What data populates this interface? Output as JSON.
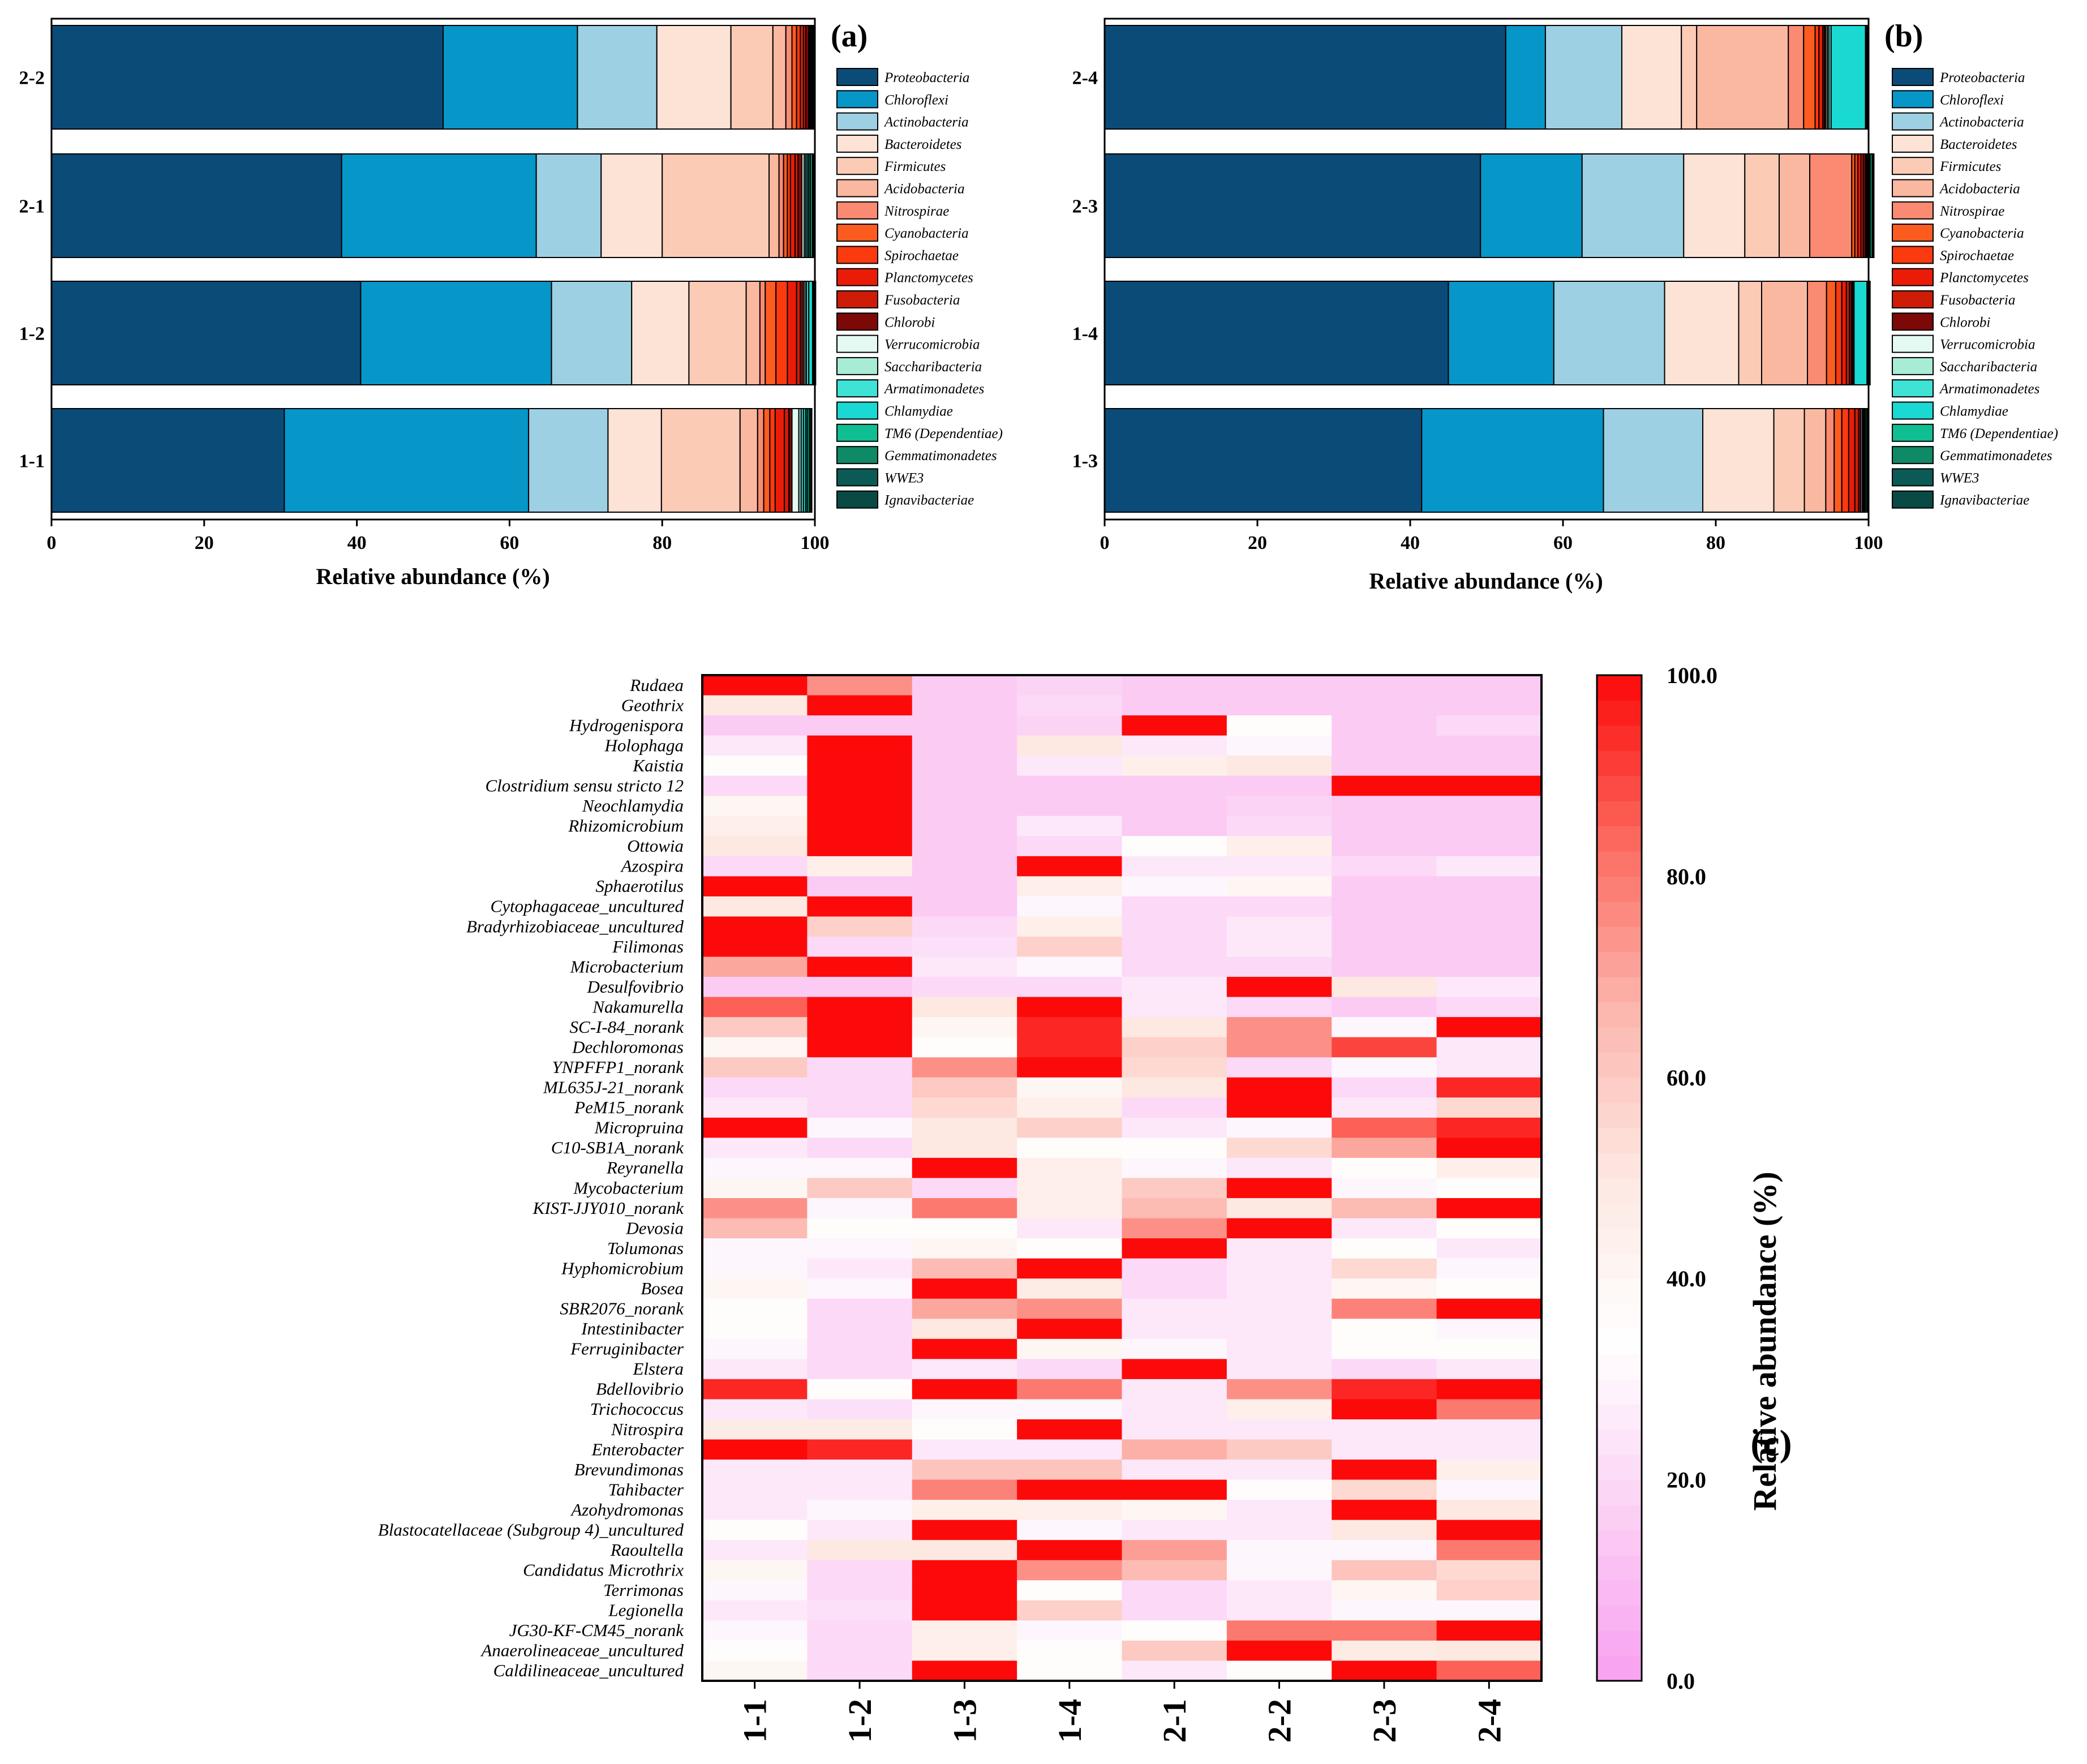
{
  "colors": {
    "phyla": [
      "#0b4b78",
      "#0696c8",
      "#9ed0e4",
      "#fde3d6",
      "#fccbb6",
      "#fbb8a0",
      "#fa8a72",
      "#fd5c20",
      "#fb3a10",
      "#ea1c08",
      "#ce1c06",
      "#7c0808",
      "#e3f9f1",
      "#a8ecd5",
      "#3fe3d6",
      "#1ad9d2",
      "#0fbf92",
      "#0e8a66",
      "#0b5a55",
      "#0a4a44"
    ],
    "heat_stops": [
      "#f8a0f0",
      "#fbd0f4",
      "#ffffff",
      "#fde8e2",
      "#fcb6ae",
      "#fc6a60",
      "#fc0a0a"
    ]
  },
  "chart_data": [
    {
      "id": "a",
      "type": "bar",
      "orientation": "horizontal",
      "stacked": true,
      "panel_label": "(a)",
      "xlabel": "Relative abundance (%)",
      "xlim": [
        0,
        100
      ],
      "xticks": [
        "0",
        "20",
        "40",
        "60",
        "80",
        "100"
      ],
      "categories": [
        "2-2",
        "2-1",
        "1-2",
        "1-1"
      ],
      "legend_position": "right",
      "series": [
        {
          "name": "Proteobacteria",
          "values": [
            51.3,
            38.0,
            40.5,
            30.5
          ]
        },
        {
          "name": "Chloroflexi",
          "values": [
            17.6,
            25.5,
            25.0,
            32.0
          ]
        },
        {
          "name": "Actinobacteria",
          "values": [
            10.4,
            8.5,
            10.5,
            10.4
          ]
        },
        {
          "name": "Bacteroidetes",
          "values": [
            9.7,
            8.0,
            7.5,
            7.0
          ]
        },
        {
          "name": "Firmicutes",
          "values": [
            5.5,
            14.0,
            7.5,
            10.3
          ]
        },
        {
          "name": "Acidobacteria",
          "values": [
            1.7,
            1.3,
            1.8,
            2.3
          ]
        },
        {
          "name": "Nitrospirae",
          "values": [
            0.8,
            0.6,
            0.7,
            0.8
          ]
        },
        {
          "name": "Cyanobacteria",
          "values": [
            0.6,
            0.5,
            1.4,
            0.8
          ]
        },
        {
          "name": "Spirochaetae",
          "values": [
            0.5,
            0.4,
            1.5,
            0.7
          ]
        },
        {
          "name": "Planctomycetes",
          "values": [
            0.4,
            0.6,
            1.2,
            1.2
          ]
        },
        {
          "name": "Fusobacteria",
          "values": [
            0.3,
            0.4,
            0.5,
            0.6
          ]
        },
        {
          "name": "Chlorobi",
          "values": [
            0.4,
            0.5,
            0.4,
            0.4
          ]
        },
        {
          "name": "Verrucomicrobia",
          "values": [
            0.1,
            0.3,
            0.2,
            0.9
          ]
        },
        {
          "name": "Saccharibacteria",
          "values": [
            0.1,
            0.2,
            0.2,
            0.3
          ]
        },
        {
          "name": "Armatimonadetes",
          "values": [
            0.1,
            0.2,
            0.3,
            0.3
          ]
        },
        {
          "name": "Chlamydiae",
          "values": [
            0.1,
            0.2,
            0.5,
            0.3
          ]
        },
        {
          "name": "TM6 (Dependentiae)",
          "values": [
            0.1,
            0.2,
            0.1,
            0.2
          ]
        },
        {
          "name": "Gemmatimonadetes",
          "values": [
            0.1,
            0.3,
            0.1,
            0.3
          ]
        },
        {
          "name": "WWE3",
          "values": [
            0.1,
            0.1,
            0.1,
            0.2
          ]
        },
        {
          "name": "Ignavibacteriae",
          "values": [
            0.1,
            0.1,
            0.1,
            0.1
          ]
        }
      ]
    },
    {
      "id": "b",
      "type": "bar",
      "orientation": "horizontal",
      "stacked": true,
      "panel_label": "(b)",
      "xlabel": "Relative abundance (%)",
      "xlim": [
        0,
        100
      ],
      "xticks": [
        "0",
        "20",
        "40",
        "60",
        "80",
        "100"
      ],
      "categories": [
        "2-4",
        "2-3",
        "1-4",
        "1-3"
      ],
      "legend_position": "right",
      "series": [
        {
          "name": "Proteobacteria",
          "values": [
            52.5,
            49.2,
            45.0,
            41.5
          ]
        },
        {
          "name": "Chloroflexi",
          "values": [
            5.2,
            13.3,
            13.8,
            23.8
          ]
        },
        {
          "name": "Actinobacteria",
          "values": [
            10.0,
            13.3,
            14.5,
            13.0
          ]
        },
        {
          "name": "Bacteroidetes",
          "values": [
            7.8,
            8.0,
            9.7,
            9.3
          ]
        },
        {
          "name": "Firmicutes",
          "values": [
            2.0,
            4.5,
            3.0,
            4.0
          ]
        },
        {
          "name": "Acidobacteria",
          "values": [
            12.0,
            4.0,
            6.0,
            2.8
          ]
        },
        {
          "name": "Nitrospirae",
          "values": [
            2.0,
            5.5,
            2.5,
            1.1
          ]
        },
        {
          "name": "Cyanobacteria",
          "values": [
            1.5,
            0.4,
            1.2,
            1.0
          ]
        },
        {
          "name": "Spirochaetae",
          "values": [
            0.5,
            0.4,
            0.8,
            0.9
          ]
        },
        {
          "name": "Planctomycetes",
          "values": [
            0.5,
            0.4,
            0.6,
            0.8
          ]
        },
        {
          "name": "Fusobacteria",
          "values": [
            0.2,
            0.3,
            0.4,
            0.5
          ]
        },
        {
          "name": "Chlorobi",
          "values": [
            0.2,
            0.3,
            0.3,
            0.3
          ]
        },
        {
          "name": "Verrucomicrobia",
          "values": [
            0.2,
            0.1,
            0.1,
            0.2
          ]
        },
        {
          "name": "Saccharibacteria",
          "values": [
            0.2,
            0.1,
            0.1,
            0.1
          ]
        },
        {
          "name": "Armatimonadetes",
          "values": [
            0.3,
            0.1,
            0.1,
            0.1
          ]
        },
        {
          "name": "Chlamydiae",
          "values": [
            4.5,
            0.2,
            1.7,
            0.1
          ]
        },
        {
          "name": "TM6 (Dependentiae)",
          "values": [
            0.1,
            0.1,
            0.1,
            0.1
          ]
        },
        {
          "name": "Gemmatimonadetes",
          "values": [
            0.1,
            0.3,
            0.1,
            0.2
          ]
        },
        {
          "name": "WWE3",
          "values": [
            0.1,
            0.1,
            0.1,
            0.1
          ]
        },
        {
          "name": "Ignavibacteriae",
          "values": [
            0.1,
            0.1,
            0.1,
            0.1
          ]
        }
      ]
    },
    {
      "id": "c",
      "type": "heatmap",
      "panel_label": "(c)",
      "colorbar_title": "Relative abundance (%)",
      "colorbar_range": [
        0,
        100
      ],
      "colorbar_ticks": [
        "0.0",
        "20.0",
        "40.0",
        "60.0",
        "80.0",
        "100.0"
      ],
      "columns": [
        "1-1",
        "1-2",
        "1-3",
        "1-4",
        "2-1",
        "2-2",
        "2-3",
        "2-4"
      ],
      "rows": [
        {
          "genus": "Rudaea",
          "values": [
            100,
            75,
            15,
            18,
            15,
            15,
            15,
            15
          ]
        },
        {
          "genus": "Geothrix",
          "values": [
            50,
            100,
            15,
            20,
            15,
            15,
            15,
            15
          ]
        },
        {
          "genus": "Hydrogenispora",
          "values": [
            15,
            15,
            15,
            18,
            100,
            35,
            15,
            20
          ]
        },
        {
          "genus": "Holophaga",
          "values": [
            25,
            100,
            15,
            50,
            25,
            30,
            15,
            15
          ]
        },
        {
          "genus": "Kaistia",
          "values": [
            35,
            100,
            15,
            25,
            45,
            50,
            15,
            15
          ]
        },
        {
          "genus": "Clostridium sensu stricto 12",
          "values": [
            20,
            100,
            15,
            15,
            15,
            15,
            100,
            100
          ]
        },
        {
          "genus": "Neochlamydia",
          "values": [
            40,
            100,
            15,
            15,
            15,
            18,
            15,
            15
          ]
        },
        {
          "genus": "Rhizomicrobium",
          "values": [
            45,
            100,
            15,
            25,
            15,
            20,
            15,
            15
          ]
        },
        {
          "genus": "Ottowia",
          "values": [
            50,
            100,
            15,
            20,
            35,
            45,
            15,
            15
          ]
        },
        {
          "genus": "Azospira",
          "values": [
            20,
            45,
            15,
            100,
            25,
            25,
            20,
            25
          ]
        },
        {
          "genus": "Sphaerotilus",
          "values": [
            100,
            15,
            15,
            45,
            30,
            40,
            15,
            15
          ]
        },
        {
          "genus": "Cytophagaceae_uncultured",
          "values": [
            50,
            100,
            15,
            30,
            20,
            20,
            15,
            15
          ]
        },
        {
          "genus": "Bradyrhizobiaceae_uncultured",
          "values": [
            100,
            58,
            20,
            45,
            20,
            25,
            15,
            15
          ]
        },
        {
          "genus": "Filimonas",
          "values": [
            100,
            20,
            22,
            58,
            20,
            25,
            15,
            15
          ]
        },
        {
          "genus": "Microbacterium",
          "values": [
            70,
            100,
            25,
            30,
            20,
            20,
            15,
            15
          ]
        },
        {
          "genus": "Desulfovibrio",
          "values": [
            15,
            15,
            20,
            20,
            25,
            100,
            50,
            25
          ]
        },
        {
          "genus": "Nakamurella",
          "values": [
            85,
            100,
            50,
            100,
            25,
            20,
            15,
            20
          ]
        },
        {
          "genus": "SC-I-84_norank",
          "values": [
            60,
            100,
            40,
            95,
            50,
            75,
            30,
            100
          ]
        },
        {
          "genus": "Dechloromonas",
          "values": [
            40,
            100,
            35,
            95,
            58,
            75,
            90,
            25
          ]
        },
        {
          "genus": "YNPFFP1_norank",
          "values": [
            60,
            20,
            75,
            100,
            55,
            20,
            30,
            25
          ]
        },
        {
          "genus": "ML635J-21_norank",
          "values": [
            20,
            20,
            60,
            40,
            50,
            100,
            20,
            95
          ]
        },
        {
          "genus": "PeM15_norank",
          "values": [
            25,
            20,
            55,
            45,
            20,
            100,
            25,
            55
          ]
        },
        {
          "genus": "Micropruina",
          "values": [
            100,
            30,
            50,
            58,
            25,
            30,
            85,
            95
          ]
        },
        {
          "genus": "C10-SB1A_norank",
          "values": [
            25,
            20,
            50,
            35,
            35,
            55,
            70,
            100
          ]
        },
        {
          "genus": "Reyranella",
          "values": [
            30,
            30,
            100,
            45,
            30,
            25,
            35,
            45
          ]
        },
        {
          "genus": "Mycobacterium",
          "values": [
            40,
            60,
            20,
            45,
            60,
            100,
            30,
            35
          ]
        },
        {
          "genus": "KIST-JJY010_norank",
          "values": [
            75,
            30,
            80,
            45,
            65,
            50,
            65,
            100
          ]
        },
        {
          "genus": "Devosia",
          "values": [
            65,
            35,
            35,
            25,
            75,
            100,
            25,
            35
          ]
        },
        {
          "genus": "Tolumonas",
          "values": [
            30,
            30,
            40,
            35,
            100,
            25,
            35,
            25
          ]
        },
        {
          "genus": "Hyphomicrobium",
          "values": [
            30,
            25,
            65,
            100,
            20,
            25,
            55,
            30
          ]
        },
        {
          "genus": "Bosea",
          "values": [
            40,
            30,
            100,
            48,
            20,
            25,
            40,
            35
          ]
        },
        {
          "genus": "SBR2076_norank",
          "values": [
            35,
            20,
            70,
            75,
            25,
            25,
            78,
            100
          ]
        },
        {
          "genus": "Intestinibacter",
          "values": [
            35,
            20,
            50,
            100,
            25,
            25,
            35,
            30
          ]
        },
        {
          "genus": "Ferruginibacter",
          "values": [
            30,
            20,
            100,
            40,
            30,
            25,
            35,
            35
          ]
        },
        {
          "genus": "Elstera",
          "values": [
            25,
            20,
            25,
            20,
            100,
            25,
            20,
            25
          ]
        },
        {
          "genus": "Bdellovibrio",
          "values": [
            95,
            35,
            100,
            80,
            25,
            75,
            95,
            100
          ]
        },
        {
          "genus": "Trichococcus",
          "values": [
            25,
            22,
            30,
            30,
            25,
            45,
            100,
            80
          ]
        },
        {
          "genus": "Nitrospira",
          "values": [
            48,
            48,
            35,
            100,
            25,
            25,
            25,
            25
          ]
        },
        {
          "genus": "Enterobacter",
          "values": [
            100,
            95,
            25,
            25,
            68,
            60,
            25,
            25
          ]
        },
        {
          "genus": "Brevundimonas",
          "values": [
            25,
            25,
            62,
            62,
            25,
            25,
            100,
            45
          ]
        },
        {
          "genus": "Tahibacter",
          "values": [
            25,
            25,
            78,
            100,
            100,
            35,
            55,
            30
          ]
        },
        {
          "genus": "Azohydromonas",
          "values": [
            25,
            30,
            45,
            45,
            40,
            25,
            100,
            50
          ]
        },
        {
          "genus": "Blastocatellaceae (Subgroup 4)_uncultured",
          "values": [
            35,
            25,
            100,
            30,
            25,
            25,
            50,
            100
          ]
        },
        {
          "genus": "Raoultella",
          "values": [
            25,
            50,
            50,
            100,
            72,
            30,
            30,
            80
          ]
        },
        {
          "genus": "Candidatus Microthrix",
          "values": [
            40,
            20,
            100,
            75,
            65,
            30,
            62,
            55
          ]
        },
        {
          "genus": "Terrimonas",
          "values": [
            30,
            20,
            100,
            35,
            20,
            25,
            40,
            58
          ]
        },
        {
          "genus": "Legionella",
          "values": [
            25,
            22,
            100,
            58,
            20,
            25,
            30,
            30
          ]
        },
        {
          "genus": "JG30-KF-CM45_norank",
          "values": [
            30,
            20,
            45,
            30,
            35,
            80,
            80,
            100
          ]
        },
        {
          "genus": "Anaerolineaceae_uncultured",
          "values": [
            35,
            20,
            45,
            35,
            60,
            100,
            48,
            50
          ]
        },
        {
          "genus": "Caldilineaceae_uncultured",
          "values": [
            40,
            20,
            100,
            35,
            25,
            35,
            100,
            85
          ]
        }
      ]
    }
  ]
}
